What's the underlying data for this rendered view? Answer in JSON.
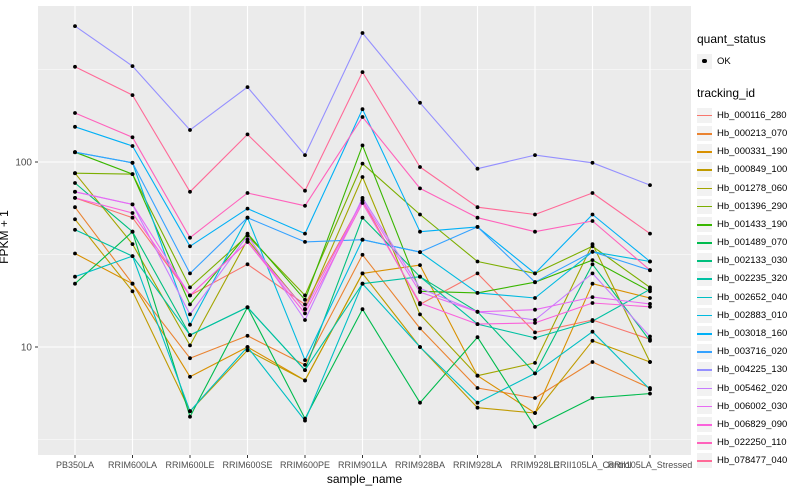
{
  "figure": {
    "panel_background": "#EBEBEB",
    "grid_color": "#FFFFFF",
    "axis_text_color": "#4D4D4D",
    "tick_color": "#333333",
    "point_color": "#000000"
  },
  "legend": {
    "quant_status_title": "quant_status",
    "quant_status_items": [
      {
        "label": "OK",
        "marker": "black-point"
      }
    ],
    "tracking_id_title": "tracking_id"
  },
  "chart_data": {
    "type": "line",
    "title": "",
    "xlabel": "sample_name",
    "ylabel": "FPKM + 1",
    "y_scale": "log10",
    "y_ticks": [
      10,
      100
    ],
    "y_minor_ticks": [
      3.162,
      31.62,
      316.2
    ],
    "ylim": [
      3.2,
      620
    ],
    "grid": true,
    "legend_position": "right",
    "marker": "small black point at every observation",
    "categories": [
      "PB350LA",
      "RRIM600LA",
      "RRIM600LE",
      "RRIM600SE",
      "RRIM600PE",
      "RRIM901LA",
      "RRIM928BA",
      "RRIM928LA",
      "RRIM928LE",
      "RRII105LA_Control",
      "RRII105LA_Stressed"
    ],
    "series": [
      {
        "name": "Hb_000116_280",
        "color": "#F8766D",
        "values": [
          64,
          50,
          19,
          28,
          17,
          62,
          17,
          25,
          12,
          14,
          11
        ]
      },
      {
        "name": "Hb_000213_070",
        "color": "#EA8331",
        "values": [
          57,
          22,
          8.7,
          11.5,
          8,
          31.5,
          12.6,
          6,
          5.3,
          8.3,
          6
        ]
      },
      {
        "name": "Hb_000331_190",
        "color": "#D89000",
        "values": [
          32,
          22,
          6.9,
          10,
          6.6,
          25,
          27.7,
          7,
          4.4,
          22,
          18.4
        ]
      },
      {
        "name": "Hb_000849_100",
        "color": "#C09B00",
        "values": [
          49,
          20,
          4.5,
          9.6,
          6.6,
          25,
          10,
          4.7,
          4.4,
          10.8,
          8.3
        ]
      },
      {
        "name": "Hb_001278_060",
        "color": "#A3A500",
        "values": [
          87,
          36,
          10.2,
          38,
          16,
          83,
          15,
          7,
          8.2,
          36,
          8.3
        ]
      },
      {
        "name": "Hb_001396_290",
        "color": "#7CAE00",
        "values": [
          87,
          86,
          21,
          40,
          19,
          98,
          52,
          29,
          25,
          35,
          21
        ]
      },
      {
        "name": "Hb_001433_190",
        "color": "#39B600",
        "values": [
          113,
          86,
          17,
          41,
          18,
          123,
          20,
          19.6,
          22.4,
          29.5,
          20
        ]
      },
      {
        "name": "Hb_001489_070",
        "color": "#00BB4E",
        "values": [
          22,
          42,
          4.2,
          16.4,
          4.1,
          16,
          5,
          11.3,
          3.7,
          5.3,
          5.6
        ]
      },
      {
        "name": "Hb_002133_030",
        "color": "#00BF7D",
        "values": [
          77,
          42,
          11.6,
          16.4,
          7.5,
          50,
          24,
          15.5,
          7.2,
          28,
          10.8
        ]
      },
      {
        "name": "Hb_002235_320",
        "color": "#00C1A3",
        "values": [
          43,
          31,
          11.6,
          16.4,
          7.5,
          22,
          24,
          13.3,
          11.2,
          13.8,
          20.5
        ]
      },
      {
        "name": "Hb_002652_040",
        "color": "#00BFC4",
        "values": [
          24,
          31,
          4.5,
          10,
          4,
          22,
          10,
          5,
          7.2,
          12.1,
          5.9
        ]
      },
      {
        "name": "Hb_002883_010",
        "color": "#00BAE0",
        "values": [
          113,
          99,
          13.2,
          50,
          8.5,
          38,
          32.6,
          19.6,
          18.4,
          32.7,
          29
        ]
      },
      {
        "name": "Hb_003018_160",
        "color": "#00B0F6",
        "values": [
          155,
          122,
          35,
          56,
          41,
          193,
          42,
          44.6,
          25,
          52,
          29
        ]
      },
      {
        "name": "Hb_003716_020",
        "color": "#35A2FF",
        "values": [
          113,
          99,
          25,
          50,
          37,
          38,
          32.6,
          44.6,
          22.4,
          32.7,
          26
        ]
      },
      {
        "name": "Hb_004225_130",
        "color": "#9590FF",
        "values": [
          543,
          330,
          149,
          254,
          109,
          498,
          209,
          92,
          109,
          99,
          75
        ]
      },
      {
        "name": "Hb_005462_020",
        "color": "#C77CFF",
        "values": [
          69,
          59,
          15,
          40,
          14,
          64,
          20.8,
          15.5,
          14,
          25,
          11.4
        ]
      },
      {
        "name": "Hb_006002_030",
        "color": "#E76BF3",
        "values": [
          69,
          59,
          19,
          37,
          16,
          62,
          19.8,
          15.5,
          15.9,
          18.6,
          17.1
        ]
      },
      {
        "name": "Hb_006829_090",
        "color": "#FA62DB",
        "values": [
          64,
          53,
          19,
          37,
          15.2,
          60,
          17.3,
          13.3,
          13.5,
          17.3,
          16.5
        ]
      },
      {
        "name": "Hb_022250_110",
        "color": "#FF62BC",
        "values": [
          184,
          136,
          39,
          68,
          58,
          175,
          72,
          50,
          42,
          48,
          26
        ]
      },
      {
        "name": "Hb_078477_040",
        "color": "#FF6A98",
        "values": [
          327,
          230,
          69,
          141,
          70,
          306,
          94,
          57,
          52,
          68,
          41
        ]
      }
    ]
  }
}
